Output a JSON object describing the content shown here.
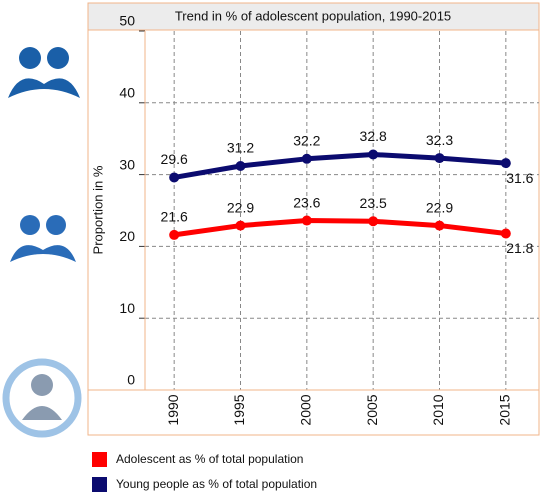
{
  "chart_data": {
    "type": "line",
    "title": "Trend in % of adolescent population, 1990-2015",
    "y_label": "Proportion in %",
    "categories": [
      "1990",
      "1995",
      "2000",
      "2005",
      "2010",
      "2015"
    ],
    "series": [
      {
        "name": "Adolescent as % of total population",
        "color": "#ff0000",
        "values": [
          21.6,
          22.9,
          23.6,
          23.5,
          22.9,
          21.8
        ]
      },
      {
        "name": "Young people as % of total population",
        "color": "#0b0b6f",
        "values": [
          29.6,
          31.2,
          32.2,
          32.8,
          32.3,
          31.6
        ]
      }
    ],
    "ylim": [
      0,
      50
    ],
    "yticks": [
      0,
      10,
      20,
      30,
      40,
      50
    ],
    "grid": true
  }
}
